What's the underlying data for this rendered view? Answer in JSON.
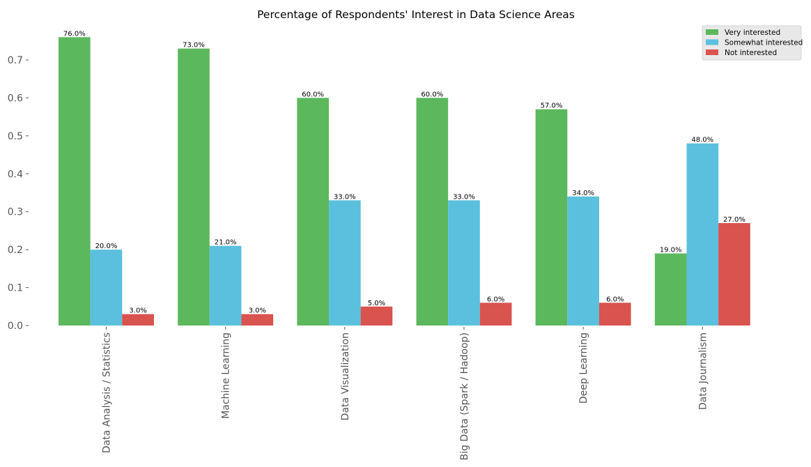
{
  "chart_data": {
    "type": "bar",
    "title": "Percentage of Respondents' Interest in Data Science Areas",
    "xlabel": "",
    "ylabel": "",
    "ylim": [
      0,
      0.79
    ],
    "yticks": [
      "0.0",
      "0.1",
      "0.2",
      "0.3",
      "0.4",
      "0.5",
      "0.6",
      "0.7"
    ],
    "grid": false,
    "legend_position": "top-right",
    "categories": [
      "Data Analysis / Statistics",
      "Machine Learning",
      "Data Visualization",
      "Big Data (Spark / Hadoop)",
      "Deep Learning",
      "Data Journalism"
    ],
    "series": [
      {
        "name": "Very interested",
        "color": "#5cb85c",
        "values": [
          0.76,
          0.73,
          0.6,
          0.6,
          0.57,
          0.19
        ],
        "labels": [
          "76.0%",
          "73.0%",
          "60.0%",
          "60.0%",
          "57.0%",
          "19.0%"
        ]
      },
      {
        "name": "Somewhat interested",
        "color": "#5bc0de",
        "values": [
          0.2,
          0.21,
          0.33,
          0.33,
          0.34,
          0.48
        ],
        "labels": [
          "20.0%",
          "21.0%",
          "33.0%",
          "33.0%",
          "34.0%",
          "48.0%"
        ]
      },
      {
        "name": "Not interested",
        "color": "#d9534f",
        "values": [
          0.03,
          0.03,
          0.05,
          0.06,
          0.06,
          0.27
        ],
        "labels": [
          "3.0%",
          "3.0%",
          "5.0%",
          "6.0%",
          "6.0%",
          "27.0%"
        ]
      }
    ]
  }
}
